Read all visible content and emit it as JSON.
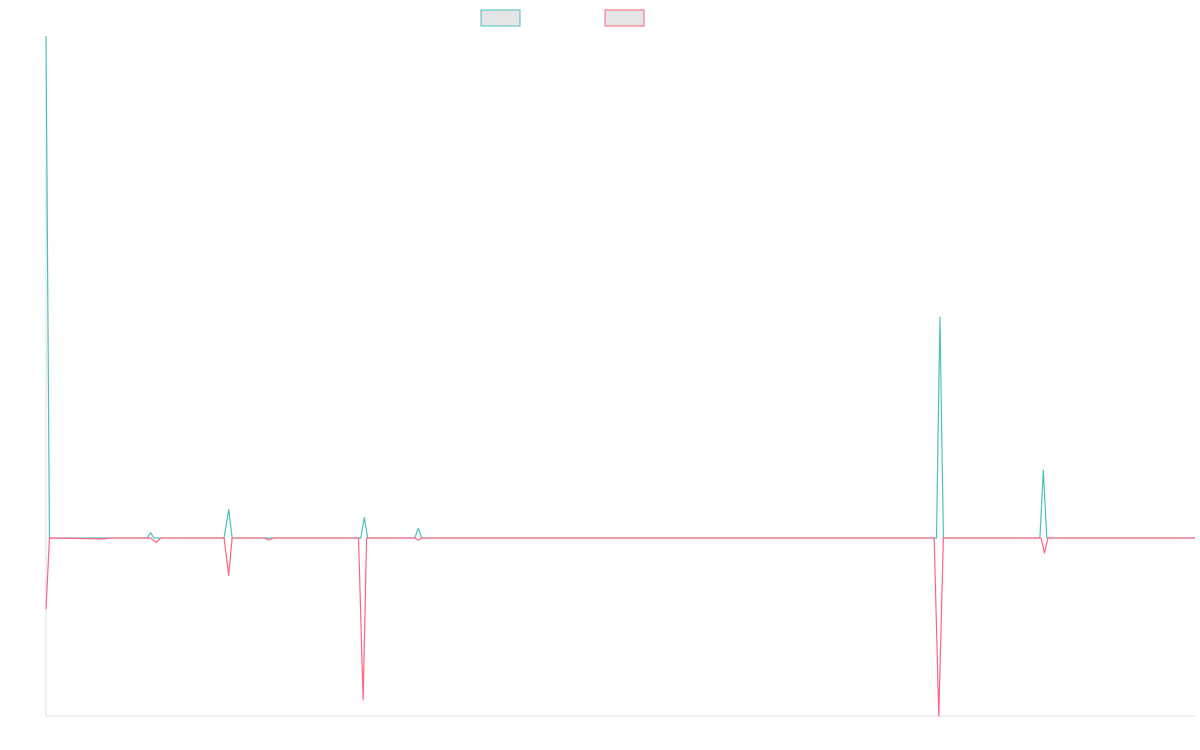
{
  "colors": {
    "series_a": "#4bc0c0",
    "series_b": "#ff6384",
    "legend_fill": "#e5e5e5",
    "axis": "#e0e0e0",
    "background": "#ffffff"
  },
  "legend": {
    "position": "top-center",
    "items": [
      {
        "label": "",
        "color": "#4bc0c0"
      },
      {
        "label": "",
        "color": "#ff6384"
      }
    ]
  },
  "chart_data": {
    "type": "line",
    "title": "",
    "xlabel": "",
    "ylabel": "",
    "grid": false,
    "tick_labels_visible": false,
    "xlim": [
      0,
      1000
    ],
    "ylim": [
      -1000,
      2820
    ],
    "series": [
      {
        "color": "#4bc0c0",
        "points": [
          [
            0,
            2820
          ],
          [
            3,
            0
          ],
          [
            50,
            0
          ],
          [
            88,
            0
          ],
          [
            91,
            30
          ],
          [
            94,
            0
          ],
          [
            155,
            0
          ],
          [
            159,
            160
          ],
          [
            162,
            0
          ],
          [
            274,
            0
          ],
          [
            277,
            115
          ],
          [
            280,
            0
          ],
          [
            321,
            0
          ],
          [
            324,
            55
          ],
          [
            327,
            0
          ],
          [
            775,
            0
          ],
          [
            778,
            1240
          ],
          [
            781,
            0
          ],
          [
            865,
            0
          ],
          [
            868,
            380
          ],
          [
            871,
            0
          ],
          [
            1000,
            0
          ]
        ]
      },
      {
        "color": "#ff6384",
        "points": [
          [
            0,
            -400
          ],
          [
            3,
            0
          ],
          [
            50,
            -5
          ],
          [
            55,
            0
          ],
          [
            91,
            0
          ],
          [
            96,
            -25
          ],
          [
            100,
            0
          ],
          [
            155,
            0
          ],
          [
            159,
            -210
          ],
          [
            162,
            0
          ],
          [
            190,
            0
          ],
          [
            194,
            -12
          ],
          [
            198,
            0
          ],
          [
            272,
            0
          ],
          [
            276,
            -910
          ],
          [
            279,
            0
          ],
          [
            321,
            0
          ],
          [
            324,
            -12
          ],
          [
            327,
            0
          ],
          [
            773,
            0
          ],
          [
            777,
            -1000
          ],
          [
            781,
            0
          ],
          [
            866,
            0
          ],
          [
            869,
            -85
          ],
          [
            872,
            0
          ],
          [
            1000,
            0
          ]
        ]
      }
    ]
  }
}
